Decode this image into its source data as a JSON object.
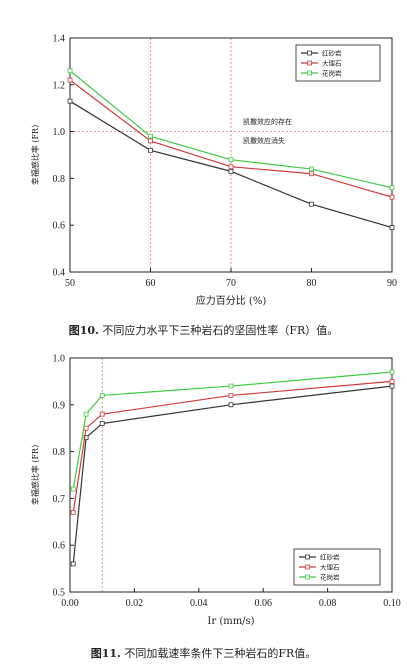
{
  "chart_data": [
    {
      "type": "line",
      "xlabel": "应力百分比 (%)",
      "ylabel": "幸福感比率 (FR)",
      "xlim": [
        50,
        90
      ],
      "ylim": [
        0.4,
        1.4
      ],
      "x_ticks": [
        "50",
        "60",
        "70",
        "80",
        "90"
      ],
      "y_ticks": [
        "0.4",
        "0.6",
        "0.8",
        "1.0",
        "1.2",
        "1.4"
      ],
      "x": [
        50,
        60,
        70,
        80,
        90
      ],
      "series": [
        {
          "name": "红砂岩",
          "color": "#333333",
          "values": [
            1.13,
            0.92,
            0.83,
            0.69,
            0.59
          ]
        },
        {
          "name": "大理石",
          "color": "#d23a3a",
          "values": [
            1.22,
            0.96,
            0.85,
            0.82,
            0.72
          ]
        },
        {
          "name": "花岗岩",
          "color": "#3ecb3e",
          "values": [
            1.26,
            0.98,
            0.88,
            0.84,
            0.76
          ]
        }
      ],
      "reference_lines": {
        "x": [
          60,
          70
        ],
        "y": [
          1.0
        ]
      },
      "annotations": [
        "凯撒效应的存在",
        "凯撒效应消失"
      ],
      "legend_position": "top-right",
      "caption_label": "图10.",
      "caption_text": "不同应力水平下三种岩石的坚固性率（FR）值。"
    },
    {
      "type": "line",
      "xlabel": "Ir (mm/s)",
      "ylabel": "幸福感比率 (FR)",
      "xlim": [
        0,
        0.1
      ],
      "ylim": [
        0.5,
        1.0
      ],
      "x_ticks": [
        "0.00",
        "0.02",
        "0.04",
        "0.06",
        "0.08",
        "0.10"
      ],
      "y_ticks": [
        "0.5",
        "0.6",
        "0.7",
        "0.8",
        "0.9",
        "1.0"
      ],
      "x": [
        0.001,
        0.005,
        0.01,
        0.05,
        0.1
      ],
      "series": [
        {
          "name": "红砂岩",
          "color": "#333333",
          "values": [
            0.56,
            0.83,
            0.86,
            0.9,
            0.94
          ]
        },
        {
          "name": "大理石",
          "color": "#d23a3a",
          "values": [
            0.67,
            0.85,
            0.88,
            0.92,
            0.95
          ]
        },
        {
          "name": "花岗岩",
          "color": "#3ecb3e",
          "values": [
            0.72,
            0.88,
            0.92,
            0.94,
            0.97
          ]
        }
      ],
      "reference_lines": {
        "x": [
          0.01
        ],
        "y": []
      },
      "legend_position": "bottom-right",
      "caption_label": "图11.",
      "caption_text": "不同加载速率条件下三种岩石的FR值。"
    }
  ]
}
